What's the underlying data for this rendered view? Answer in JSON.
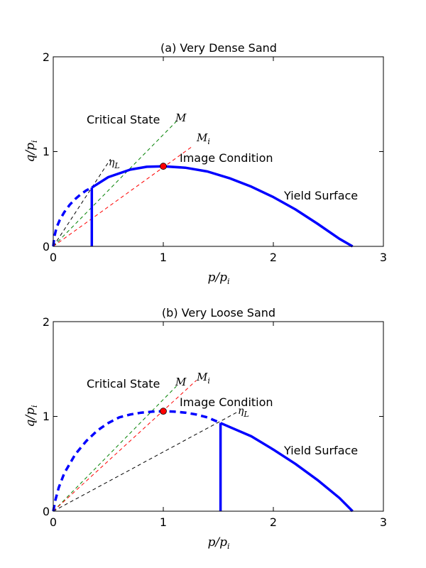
{
  "chart_data": [
    {
      "type": "line",
      "title": "(a) Very Dense Sand",
      "xlabel": "p/pi",
      "ylabel": "q/pi",
      "xlim": [
        0,
        3
      ],
      "ylim": [
        0,
        2
      ],
      "xticks": [
        "0",
        "1",
        "2",
        "3"
      ],
      "yticks": [
        "0",
        "1",
        "2"
      ],
      "grid": false,
      "annotations": {
        "critical_state": "Critical State",
        "image_condition": "Image Condition",
        "yield_surface": "Yield Surface"
      },
      "line_labels": {
        "M": "M",
        "Mi": "M",
        "Mi_sub": "i",
        "etaL": "η",
        "etaL_sub": "L"
      },
      "series": [
        {
          "name": "M",
          "style": "dashed",
          "color": "#008000",
          "x": [
            0,
            1.12
          ],
          "y": [
            0,
            1.32
          ]
        },
        {
          "name": "Mi",
          "style": "dashed",
          "color": "#ff0000",
          "x": [
            0,
            1.27
          ],
          "y": [
            0,
            1.06
          ]
        },
        {
          "name": "etaL",
          "style": "dashed",
          "color": "#000000",
          "x": [
            0,
            0.52
          ],
          "y": [
            0,
            0.92
          ]
        },
        {
          "name": "yield_surface_dashed",
          "style": "dashed",
          "color": "#0000ff",
          "x": [
            0,
            0.01,
            0.03,
            0.06,
            0.1,
            0.15,
            0.2,
            0.25,
            0.3,
            0.35
          ],
          "y": [
            0,
            0.1,
            0.2,
            0.28,
            0.36,
            0.44,
            0.5,
            0.55,
            0.59,
            0.62
          ]
        },
        {
          "name": "yield_surface",
          "style": "solid",
          "color": "#0000ff",
          "x": [
            0.35,
            0.5,
            0.7,
            0.85,
            1.0,
            1.2,
            1.4,
            1.6,
            1.8,
            2.0,
            2.2,
            2.4,
            2.6,
            2.72
          ],
          "y": [
            0.62,
            0.73,
            0.81,
            0.84,
            0.845,
            0.83,
            0.79,
            0.72,
            0.63,
            0.52,
            0.39,
            0.24,
            0.08,
            0
          ]
        },
        {
          "name": "vertical_line",
          "style": "solid",
          "color": "#0000ff",
          "x": [
            0.35,
            0.35
          ],
          "y": [
            0,
            0.62
          ]
        }
      ],
      "marker": {
        "x": 1.0,
        "y": 0.845,
        "color": "#ff0000"
      }
    },
    {
      "type": "line",
      "title": "(b) Very Loose Sand",
      "xlabel": "p/pi",
      "ylabel": "q/pi",
      "xlim": [
        0,
        3
      ],
      "ylim": [
        0,
        2
      ],
      "xticks": [
        "0",
        "1",
        "2",
        "3"
      ],
      "yticks": [
        "0",
        "1",
        "2"
      ],
      "grid": false,
      "annotations": {
        "critical_state": "Critical State",
        "image_condition": "Image Condition",
        "yield_surface": "Yield Surface"
      },
      "line_labels": {
        "M": "M",
        "Mi": "M",
        "Mi_sub": "i",
        "etaL": "η",
        "etaL_sub": "L"
      },
      "series": [
        {
          "name": "M",
          "style": "dashed",
          "color": "#008000",
          "x": [
            0,
            1.12
          ],
          "y": [
            0,
            1.32
          ]
        },
        {
          "name": "Mi",
          "style": "dashed",
          "color": "#ff0000",
          "x": [
            0,
            1.3
          ],
          "y": [
            0,
            1.38
          ]
        },
        {
          "name": "etaL",
          "style": "dashed",
          "color": "#000000",
          "x": [
            0,
            1.68
          ],
          "y": [
            0,
            1.05
          ]
        },
        {
          "name": "yield_surface_dashed",
          "style": "dashed",
          "color": "#0000ff",
          "x": [
            0,
            0.02,
            0.05,
            0.1,
            0.2,
            0.3,
            0.4,
            0.5,
            0.6,
            0.7,
            0.8,
            0.9,
            1.0,
            1.1,
            1.2,
            1.3,
            1.4,
            1.52
          ],
          "y": [
            0,
            0.12,
            0.25,
            0.4,
            0.6,
            0.74,
            0.85,
            0.93,
            0.99,
            1.02,
            1.04,
            1.05,
            1.055,
            1.05,
            1.04,
            1.02,
            0.99,
            0.93
          ]
        },
        {
          "name": "yield_surface",
          "style": "solid",
          "color": "#0000ff",
          "x": [
            1.52,
            1.6,
            1.8,
            2.0,
            2.2,
            2.4,
            2.6,
            2.72
          ],
          "y": [
            0.93,
            0.89,
            0.79,
            0.65,
            0.5,
            0.33,
            0.14,
            0
          ]
        },
        {
          "name": "vertical_line",
          "style": "solid",
          "color": "#0000ff",
          "x": [
            1.52,
            1.52
          ],
          "y": [
            0,
            0.93
          ]
        }
      ],
      "marker": {
        "x": 1.0,
        "y": 1.055,
        "color": "#ff0000"
      }
    }
  ]
}
